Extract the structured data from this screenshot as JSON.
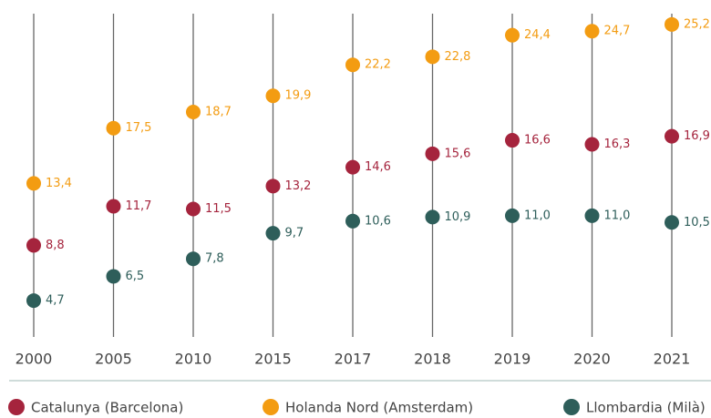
{
  "chart_data": {
    "type": "dot",
    "categories": [
      "2000",
      "2005",
      "2010",
      "2015",
      "2017",
      "2018",
      "2019",
      "2020",
      "2021"
    ],
    "series": [
      {
        "name": "Catalunya (Barcelona)",
        "color": "#a5243d",
        "values": [
          8.8,
          11.7,
          11.5,
          13.2,
          14.6,
          15.6,
          16.6,
          16.3,
          16.9
        ],
        "value_labels": [
          "8,8",
          "11,7",
          "11,5",
          "13,2",
          "14,6",
          "15,6",
          "16,6",
          "16,3",
          "16,9"
        ]
      },
      {
        "name": "Holanda Nord (Amsterdam)",
        "color": "#f39c12",
        "values": [
          13.4,
          17.5,
          18.7,
          19.9,
          22.2,
          22.8,
          24.4,
          24.7,
          25.2
        ],
        "value_labels": [
          "13,4",
          "17,5",
          "18,7",
          "19,9",
          "22,2",
          "22,8",
          "24,4",
          "24,7",
          "25,2"
        ]
      },
      {
        "name": "Llombardia (Milà)",
        "color": "#2e5e5a",
        "values": [
          4.7,
          6.5,
          7.8,
          9.7,
          10.6,
          10.9,
          11.0,
          11.0,
          10.5
        ],
        "value_labels": [
          "4,7",
          "6,5",
          "7,8",
          "9,7",
          "10,6",
          "10,9",
          "11,0",
          "11,0",
          "10,5"
        ]
      }
    ],
    "ylim": [
      2,
      26
    ]
  }
}
